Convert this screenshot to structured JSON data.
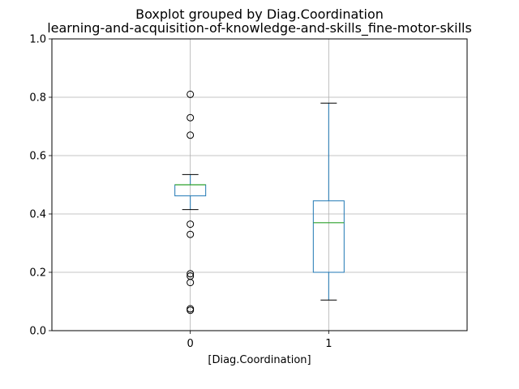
{
  "chart_data": {
    "type": "boxplot",
    "title": "Boxplot grouped by Diag.Coordination",
    "subtitle": "learning-and-acquisition-of-knowledge-and-skills_fine-motor-skills",
    "xlabel": "[Diag.Coordination]",
    "ylabel": "",
    "ylim": [
      0.0,
      1.0
    ],
    "yticks": [
      "0.0",
      "0.2",
      "0.4",
      "0.6",
      "0.8",
      "1.0"
    ],
    "grid": true,
    "categories": [
      "0",
      "1"
    ],
    "boxes": [
      {
        "category": "0",
        "whisker_low": 0.415,
        "q1": 0.462,
        "median": 0.5,
        "q3": 0.5,
        "whisker_high": 0.535,
        "outliers": [
          0.81,
          0.73,
          0.67,
          0.365,
          0.33,
          0.195,
          0.187,
          0.165,
          0.075,
          0.07
        ]
      },
      {
        "category": "1",
        "whisker_low": 0.105,
        "q1": 0.2,
        "median": 0.37,
        "q3": 0.445,
        "whisker_high": 0.78,
        "outliers": []
      }
    ],
    "colors": {
      "box": "#1f77b4",
      "median": "#2ca02c",
      "whisker_cap": "#000000",
      "outlier": "#000000",
      "grid": "#b0b0b0"
    }
  }
}
